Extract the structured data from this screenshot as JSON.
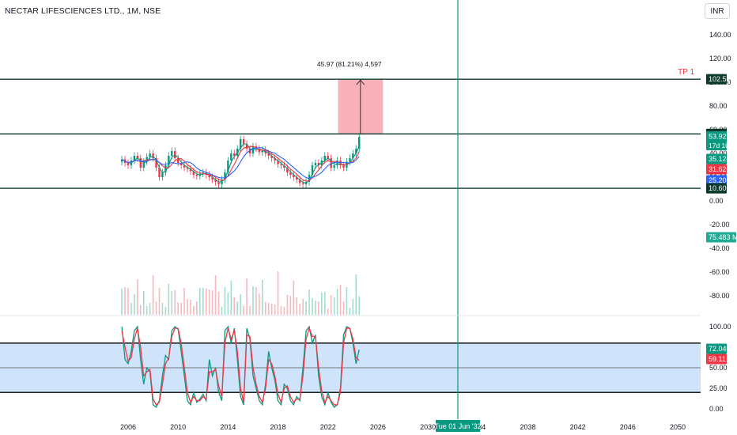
{
  "header": {
    "symbol_title": "NECTAR LIFESCIENCES LTD., 1M, NSE",
    "currency": "INR"
  },
  "colors": {
    "accent": "#089981",
    "down": "#f23645",
    "zone": "#cfe4fb",
    "target_box": "#f8aab1",
    "hline": "#0c3b2e"
  },
  "chart_data": [
    {
      "type": "candlestick",
      "symbol": "NECTAR LIFESCIENCES LTD.",
      "interval": "1M",
      "exchange": "NSE",
      "currency": "INR",
      "price_axis_ticks": [
        "140.00",
        "120.00",
        "100.00",
        "80.00",
        "60.00",
        "40.00",
        "20.00",
        "0.00",
        "-20.00",
        "-40.00",
        "-60.00",
        "-80.00"
      ],
      "ylim": [
        -90,
        150
      ],
      "x_ticks": [
        "2006",
        "2010",
        "2014",
        "2018",
        "2022",
        "2026",
        "2030",
        "2034",
        "2038",
        "2042",
        "2046",
        "2050"
      ],
      "xlim": [
        2003.5,
        2052
      ],
      "candles_x": [
        2005.5,
        2005.75,
        2006,
        2006.25,
        2006.5,
        2006.75,
        2007,
        2007.25,
        2007.5,
        2007.75,
        2008,
        2008.25,
        2008.5,
        2008.75,
        2009,
        2009.25,
        2009.5,
        2009.75,
        2010,
        2010.25,
        2010.5,
        2010.75,
        2011,
        2011.25,
        2011.5,
        2011.75,
        2012,
        2012.25,
        2012.5,
        2012.75,
        2013,
        2013.25,
        2013.5,
        2013.75,
        2014,
        2014.25,
        2014.5,
        2014.75,
        2015,
        2015.25,
        2015.5,
        2015.75,
        2016,
        2016.25,
        2016.5,
        2016.75,
        2017,
        2017.25,
        2017.5,
        2017.75,
        2018,
        2018.25,
        2018.5,
        2018.75,
        2019,
        2019.25,
        2019.5,
        2019.75,
        2020,
        2020.25,
        2020.5,
        2020.75,
        2021,
        2021.25,
        2021.5,
        2021.75,
        2022,
        2022.25,
        2022.5,
        2022.75,
        2023,
        2023.25,
        2023.5,
        2023.75,
        2024,
        2024.25,
        2024.5
      ],
      "candles_close": [
        35,
        32,
        30,
        34,
        38,
        36,
        28,
        33,
        37,
        40,
        36,
        28,
        20,
        24,
        30,
        38,
        42,
        36,
        32,
        30,
        28,
        27,
        25,
        22,
        21,
        23,
        24,
        22,
        20,
        18,
        16,
        14,
        18,
        24,
        34,
        40,
        38,
        44,
        52,
        48,
        44,
        40,
        46,
        44,
        41,
        43,
        40,
        38,
        36,
        34,
        31,
        30,
        28,
        24,
        22,
        20,
        18,
        15,
        14,
        16,
        22,
        30,
        32,
        30,
        34,
        38,
        36,
        28,
        30,
        34,
        30,
        28,
        33,
        36,
        40,
        44,
        53.92
      ],
      "horizontal_levels": [
        102.57,
        56.48,
        10.6
      ],
      "target_box": {
        "from_price": 56.48,
        "to_price": 102.57,
        "from_x": 2022.8,
        "to_x": 2026.4
      },
      "measure_label": "45.97 (81.21%) 4,597",
      "annotation": "TP 1",
      "price_badges": [
        {
          "value": "102.57",
          "color": "#0c3b2e"
        },
        {
          "value": "56.48",
          "color": "#0c3b2e"
        },
        {
          "value": "53.92",
          "sub": "17d 10h",
          "color": "#089981"
        },
        {
          "value": "35.12",
          "color": "#089981"
        },
        {
          "value": "31.62",
          "color": "#f23645"
        },
        {
          "value": "25.20",
          "color": "#2962ff"
        },
        {
          "value": "10.60",
          "color": "#0c3b2e"
        },
        {
          "value": "75.483 M",
          "color": "#22ab94"
        }
      ],
      "moving_averages": [
        {
          "color": "#089981",
          "value": 35.12
        },
        {
          "color": "#f23645",
          "value": 31.62
        },
        {
          "color": "#2962ff",
          "value": 25.2
        }
      ],
      "volume_last": "75.483 M",
      "crosshair_label": "Tue 01 Jun '32",
      "crosshair_x": 2032.4
    },
    {
      "type": "line",
      "name": "Stochastic",
      "ylim": [
        -5,
        110
      ],
      "y_ticks": [
        "100.00",
        "75.00",
        "50.00",
        "25.00",
        "0.00"
      ],
      "zone": [
        20,
        80
      ],
      "middle_line": 50,
      "series": [
        {
          "color": "#089981",
          "values": [
            100,
            60,
            55,
            70,
            95,
            100,
            60,
            30,
            50,
            45,
            5,
            2,
            10,
            40,
            65,
            60,
            95,
            100,
            97,
            70,
            40,
            10,
            5,
            20,
            8,
            12,
            18,
            10,
            60,
            40,
            50,
            20,
            10,
            95,
            100,
            80,
            98,
            60,
            15,
            5,
            98,
            85,
            40,
            25,
            10,
            5,
            30,
            70,
            50,
            35,
            10,
            5,
            30,
            25,
            10,
            5,
            15,
            10,
            50,
            95,
            100,
            80,
            90,
            40,
            15,
            5,
            20,
            8,
            2,
            5,
            25,
            90,
            100,
            98,
            80,
            55,
            72.04
          ]
        },
        {
          "color": "#f23645",
          "values": [
            95,
            75,
            58,
            62,
            85,
            98,
            75,
            40,
            45,
            48,
            12,
            5,
            8,
            30,
            55,
            62,
            88,
            98,
            98,
            80,
            50,
            20,
            8,
            15,
            10,
            10,
            15,
            12,
            45,
            45,
            48,
            28,
            15,
            80,
            98,
            85,
            95,
            70,
            25,
            8,
            90,
            88,
            50,
            30,
            15,
            8,
            25,
            60,
            55,
            40,
            18,
            8,
            25,
            28,
            15,
            8,
            12,
            12,
            40,
            85,
            98,
            88,
            88,
            50,
            22,
            8,
            15,
            10,
            5,
            5,
            20,
            80,
            98,
            98,
            85,
            62,
            59.11
          ]
        }
      ],
      "badges": [
        {
          "value": "72.04",
          "color": "#089981"
        },
        {
          "value": "59.11",
          "color": "#f23645"
        }
      ]
    }
  ]
}
